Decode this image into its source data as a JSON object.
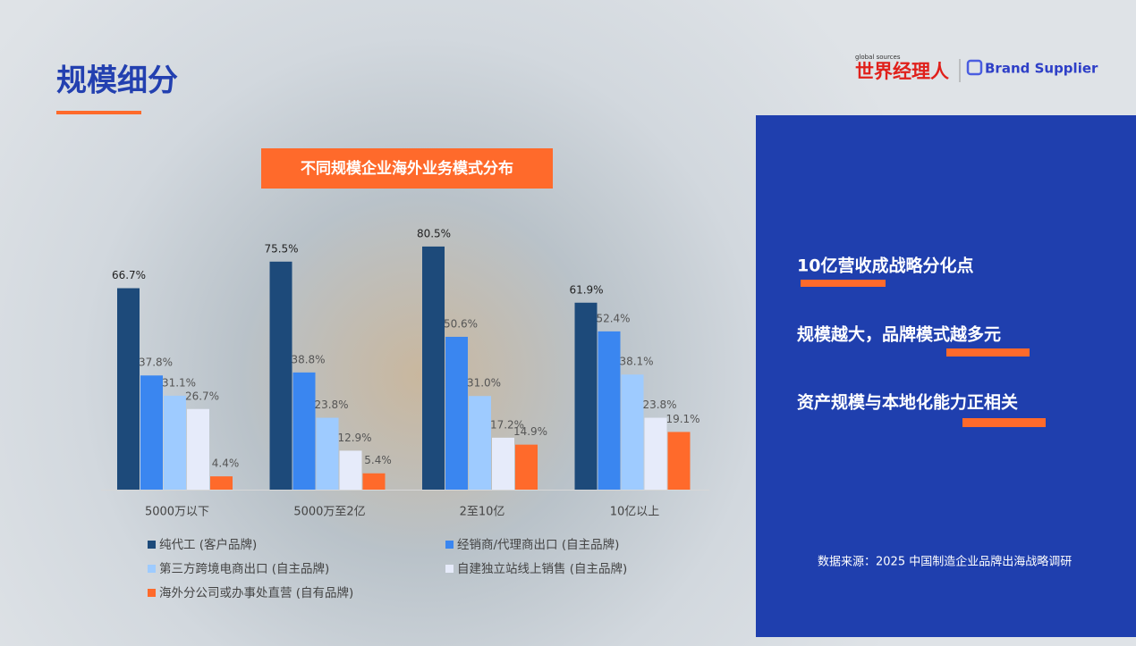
{
  "header": {
    "title": "规模细分",
    "logo": {
      "small": "global sources",
      "cn": "世界经理人",
      "brand": "Brand Supplier"
    }
  },
  "panel": {
    "points": [
      "10亿营收成战略分化点",
      "规模越大，品牌模式越多元",
      "资产规模与本地化能力正相关"
    ],
    "source": "数据来源：2025 中国制造企业品牌出海战略调研"
  },
  "chart_data": {
    "type": "bar",
    "title": "不同规模企业海外业务模式分布",
    "categories": [
      "5000万以下",
      "5000万至2亿",
      "2至10亿",
      "10亿以上"
    ],
    "series": [
      {
        "name": "纯代工 (客户品牌)",
        "color": "#1d4a7a",
        "values": [
          66.7,
          75.5,
          80.5,
          61.9
        ],
        "value_labels": [
          "66.7%",
          "75.5%",
          "80.5%",
          "61.9%"
        ]
      },
      {
        "name": "经销商/代理商出口 (自主品牌)",
        "color": "#3a86f0",
        "values": [
          37.8,
          38.8,
          50.6,
          52.4
        ],
        "value_labels": [
          "37.8%",
          "38.8%",
          "50.6%",
          "52.4%"
        ]
      },
      {
        "name": "第三方跨境电商出口 (自主品牌)",
        "color": "#9ecbff",
        "values": [
          31.1,
          23.8,
          31.0,
          38.1
        ],
        "value_labels": [
          "31.1%",
          "23.8%",
          "31.0%",
          "38.1%"
        ]
      },
      {
        "name": "自建独立站线上销售 (自主品牌)",
        "color": "#e6ebfa",
        "values": [
          26.7,
          12.9,
          17.2,
          23.8
        ],
        "value_labels": [
          "26.7%",
          "12.9%",
          "17.2%",
          "23.8%"
        ]
      },
      {
        "name": "海外分公司或办事处直营 (自有品牌)",
        "color": "#ff6a2b",
        "values": [
          4.4,
          5.4,
          14.9,
          19.1
        ],
        "value_labels": [
          "4.4%",
          "5.4%",
          "14.9%",
          "19.1%"
        ]
      }
    ]
  }
}
